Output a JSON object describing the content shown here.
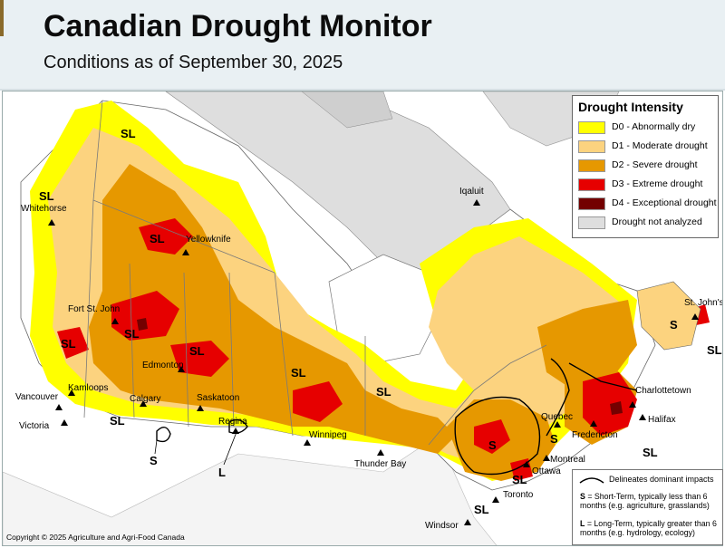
{
  "header": {
    "title": "Canadian Drought Monitor",
    "subtitle": "Conditions as of September 30, 2025"
  },
  "legend": {
    "title": "Drought Intensity",
    "items": [
      {
        "label": "D0 - Abnormally dry",
        "color": "#ffff00"
      },
      {
        "label": "D1 - Moderate drought",
        "color": "#fcd37f"
      },
      {
        "label": "D2 - Severe drought",
        "color": "#e69800"
      },
      {
        "label": "D3 - Extreme drought",
        "color": "#e60000"
      },
      {
        "label": "D4 - Exceptional drought",
        "color": "#730000"
      },
      {
        "label": "Drought not analyzed",
        "color": "#dedede"
      }
    ]
  },
  "impacts": {
    "line_label": "Delineates dominant impacts",
    "short_term_code": "S",
    "short_term_text": "= Short-Term, typically less than 6 months (e.g. agriculture, grasslands)",
    "long_term_code": "L",
    "long_term_text": "= Long-Term, typically greater than 6 months (e.g. hydrology, ecology)"
  },
  "cities": {
    "whitehorse": "Whitehorse",
    "yellowknife": "Yellowknife",
    "iqaluit": "Iqaluit",
    "fort_st_john": "Fort St. John",
    "edmonton": "Edmonton",
    "kamloops": "Kamloops",
    "calgary": "Calgary",
    "saskatoon": "Saskatoon",
    "vancouver": "Vancouver",
    "victoria": "Victoria",
    "regina": "Regina",
    "winnipeg": "Winnipeg",
    "thunder_bay": "Thunder Bay",
    "quebec": "Quebec",
    "montreal": "Montreal",
    "ottawa": "Ottawa",
    "toronto": "Toronto",
    "windsor": "Windsor",
    "fredericton": "Fredericton",
    "charlottetown": "Charlottetown",
    "halifax": "Halifax",
    "st_johns": "St. John's"
  },
  "impact_tags": {
    "sl": "SL",
    "s": "S",
    "l": "L"
  },
  "copyright": "Copyright © 2025 Agriculture and Agri-Food Canada"
}
